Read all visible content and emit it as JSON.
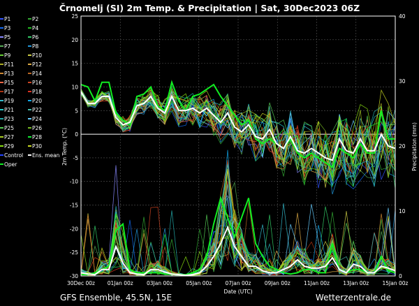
{
  "chart_data": {
    "type": "line",
    "title": "Črnomelj  (SI)  2m Temp. & Precipitation | Sat, 30Dec2023 06Z",
    "xlabel": "Date (UTC)",
    "ylabel_left": "2m Temp. (°C)",
    "ylabel_right": "Precipitation (mm)",
    "ylim_left": [
      -30,
      25
    ],
    "ylim_right": [
      0,
      40
    ],
    "yticks_left": [
      "25",
      "20",
      "15",
      "10",
      "5",
      "0",
      "-5",
      "-10",
      "-15",
      "-20",
      "-25",
      "-30"
    ],
    "yticks_right": [
      "40",
      "30",
      "20",
      "10",
      "0"
    ],
    "x_ticks": [
      "30Dec 00z",
      "01Jan 00z",
      "03Jan 00z",
      "05Jan 00z",
      "07Jan 00z",
      "09Jan 00z",
      "11Jan 00z",
      "13Jan 00z",
      "15Jan 00z"
    ],
    "legend": [
      "P1",
      "P2",
      "P3",
      "P4",
      "P5",
      "P6",
      "P7",
      "P8",
      "P9",
      "P10",
      "P11",
      "P12",
      "P13",
      "P14",
      "P15",
      "P16",
      "P17",
      "P18",
      "P19",
      "P20",
      "P21",
      "P22",
      "P23",
      "P24",
      "P25",
      "P26",
      "P27",
      "P28",
      "P29",
      "P30",
      "Control",
      "Ens. mean",
      "Oper"
    ],
    "grid": true,
    "footer_left": "GFS Ensemble, 45.5N, 15E",
    "footer_right": "Wetterzentrale.de",
    "ens_mean_temp": [
      9,
      6.5,
      6.5,
      8,
      8,
      3.5,
      2,
      2.5,
      6,
      6.5,
      8,
      5.5,
      4.5,
      8,
      5,
      5,
      5.5,
      4.5,
      5.5,
      4,
      2.5,
      4.5,
      1.5,
      0.5,
      2,
      -0.5,
      -1,
      1,
      -2,
      -3,
      -0.5,
      -3.5,
      -4,
      -3,
      -4,
      -5,
      -5.5,
      -1,
      -3.5,
      -4,
      -1,
      -3.5,
      -3.5,
      0,
      -2.5,
      -3
    ],
    "oper_temp": [
      10.5,
      10,
      7,
      11,
      11,
      4.5,
      3,
      2,
      8,
      8.5,
      10,
      6,
      5,
      11,
      7,
      5,
      8,
      8.5,
      9.5,
      10.5,
      8,
      6,
      4,
      2,
      3,
      -1,
      -2,
      -1,
      -2,
      -3,
      -1,
      -4,
      -5,
      -4,
      -5,
      -6,
      -7,
      -3,
      -4,
      -5,
      -2,
      -4,
      -4,
      5,
      -1,
      -1
    ],
    "ens_mean_precip": [
      0.5,
      0.3,
      0.2,
      1,
      1,
      4.5,
      2,
      0.5,
      0.3,
      0.2,
      1,
      1,
      0.6,
      0.3,
      0.2,
      0.1,
      0.2,
      0.5,
      1.5,
      3,
      5,
      7.5,
      4.5,
      3,
      1.5,
      1.5,
      0.8,
      0.5,
      0.5,
      1,
      1.5,
      2.5,
      1.5,
      1.2,
      1.2,
      1.5,
      2.8,
      1,
      0.5,
      1.8,
      1.5,
      0.5,
      0.5,
      1.5,
      1.2,
      0.8
    ],
    "oper_precip": [
      0.2,
      0.2,
      0.5,
      1,
      1.5,
      7,
      8,
      1,
      0.5,
      0.5,
      0.5,
      0.5,
      0.3,
      0.3,
      0.2,
      0.2,
      0.5,
      1,
      3,
      8,
      12,
      9,
      6,
      9,
      12,
      5,
      3,
      1.5,
      1,
      0.5,
      0.3,
      0.5,
      1,
      1,
      0.5,
      0.5,
      5,
      1,
      0.5,
      1,
      1,
      0.5,
      0.5,
      3,
      0.8,
      0.5
    ]
  }
}
